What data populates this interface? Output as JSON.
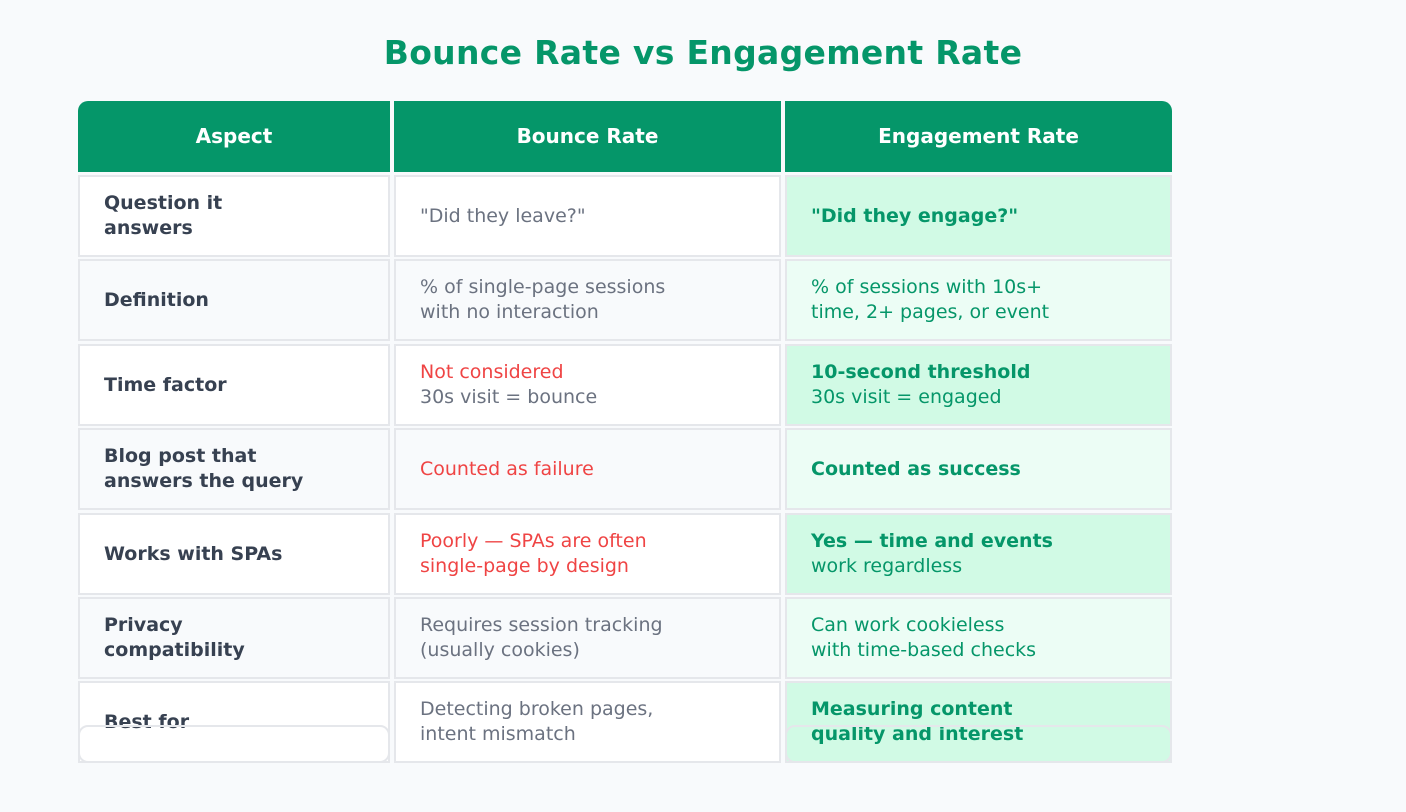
{
  "title": "Bounce Rate vs Engagement Rate",
  "headers": [
    "Aspect",
    "Bounce Rate",
    "Engagement Rate"
  ],
  "colors": {
    "accent": "#059669",
    "negative": "#ef4444",
    "engaged_bg": "#d1fae5",
    "engaged_bg_alt": "#ecfdf5"
  },
  "rows": [
    {
      "aspect": [
        "Question it",
        "answers"
      ],
      "bounce": [
        {
          "t": "\"Did they leave?\"",
          "s": "gray"
        }
      ],
      "engagement": [
        {
          "t": "\"Did they engage?\"",
          "s": "greenb"
        }
      ]
    },
    {
      "aspect": [
        "Definition"
      ],
      "bounce": [
        {
          "t": "% of single-page sessions",
          "s": "gray"
        },
        {
          "t": "with no interaction",
          "s": "gray"
        }
      ],
      "engagement": [
        {
          "t": "% of sessions with 10s+",
          "s": "green"
        },
        {
          "t": "time, 2+ pages, or event",
          "s": "green"
        }
      ]
    },
    {
      "aspect": [
        "Time factor"
      ],
      "bounce": [
        {
          "t": "Not considered",
          "s": "red"
        },
        {
          "t": "30s visit = bounce",
          "s": "gray"
        }
      ],
      "engagement": [
        {
          "t": "10-second threshold",
          "s": "greenb"
        },
        {
          "t": "30s visit = engaged",
          "s": "green"
        }
      ]
    },
    {
      "aspect": [
        "Blog post that",
        "answers the query"
      ],
      "bounce": [
        {
          "t": "Counted as failure",
          "s": "red"
        }
      ],
      "engagement": [
        {
          "t": "Counted as success",
          "s": "greenb"
        }
      ]
    },
    {
      "aspect": [
        "Works with SPAs"
      ],
      "bounce": [
        {
          "t": "Poorly — SPAs are often",
          "s": "red"
        },
        {
          "t": "single-page by design",
          "s": "red"
        }
      ],
      "engagement": [
        {
          "t": "Yes — time and events",
          "s": "greenb"
        },
        {
          "t": "work regardless",
          "s": "green"
        }
      ]
    },
    {
      "aspect": [
        "Privacy",
        "compatibility"
      ],
      "bounce": [
        {
          "t": "Requires session tracking",
          "s": "gray"
        },
        {
          "t": "(usually cookies)",
          "s": "gray"
        }
      ],
      "engagement": [
        {
          "t": "Can work cookieless",
          "s": "green"
        },
        {
          "t": "with time-based checks",
          "s": "green"
        }
      ]
    },
    {
      "aspect": [
        "Best for"
      ],
      "bounce": [
        {
          "t": "Detecting broken pages,",
          "s": "gray"
        },
        {
          "t": "intent mismatch",
          "s": "gray"
        }
      ],
      "engagement": [
        {
          "t": "Measuring content",
          "s": "greenb"
        },
        {
          "t": "quality and interest",
          "s": "greenb"
        }
      ]
    }
  ]
}
